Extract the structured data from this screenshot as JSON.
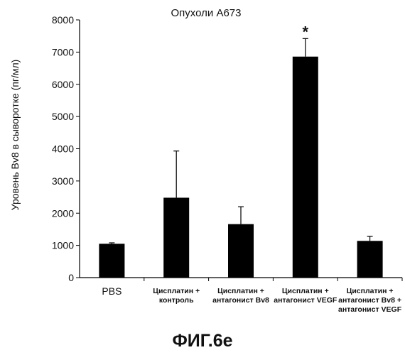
{
  "chart_data": {
    "type": "bar",
    "title": "Опухоли A673",
    "ylabel": "Уровень Bv8 в сыворотке (пг/мл)",
    "xlabel": "",
    "ylim": [
      0,
      8000
    ],
    "yticks": [
      0,
      1000,
      2000,
      3000,
      4000,
      5000,
      6000,
      7000,
      8000
    ],
    "categories": [
      [
        "PBS"
      ],
      [
        "Цисплатин +",
        "контроль"
      ],
      [
        "Цисплатин +",
        "антагонист Bv8"
      ],
      [
        "Цисплатин +",
        "антагонист VEGF"
      ],
      [
        "Цисплатин +",
        "антагонист Bv8 +",
        "антагонист VEGF"
      ]
    ],
    "values": [
      1050,
      2480,
      1660,
      6860,
      1140
    ],
    "error_upper": [
      1080,
      3930,
      2200,
      7420,
      1280
    ],
    "significance": [
      "",
      "",
      "",
      "*",
      ""
    ],
    "grid": false,
    "bar_color": "#000000"
  },
  "caption": "ФИГ.6е"
}
